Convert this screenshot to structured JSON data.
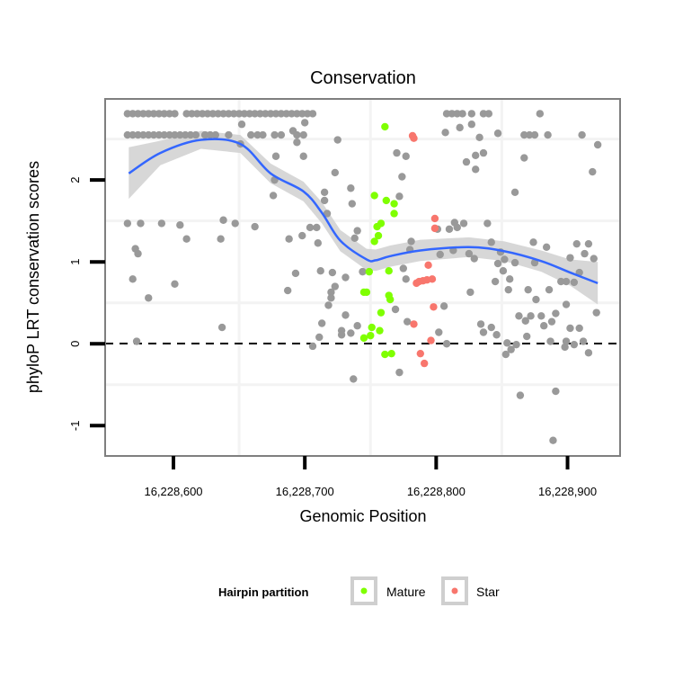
{
  "chart_data": {
    "type": "scatter",
    "title": "Conservation",
    "xlabel": "Genomic Position",
    "ylabel": "phyloP LRT conservation scores",
    "xlim": [
      16228548,
      16228940
    ],
    "ylim": [
      -1.37,
      2.99
    ],
    "x_ticks": [
      16228600,
      16228700,
      16228800,
      16228900
    ],
    "x_tick_labels": [
      "16,228,600",
      "16,228,700",
      "16,228,800",
      "16,228,900"
    ],
    "y_ticks": [
      2,
      1,
      0,
      -1
    ],
    "y_tick_labels": [
      "2",
      "1",
      "0",
      "-1"
    ],
    "grid": true,
    "reference_line": {
      "y": 0,
      "style": "dashed"
    },
    "legend": {
      "title": "Hairpin partition",
      "placement": "bottom",
      "entries": [
        {
          "label": "Mature",
          "color": "#7FFF00"
        },
        {
          "label": "Star",
          "color": "#F8766D"
        }
      ]
    },
    "colors": {
      "other": "#999999",
      "smooth": "#3366FF",
      "band": "#D3D3D3"
    },
    "series": [
      {
        "name": "Other",
        "color": "#999999",
        "points": [
          [
            16228565,
            2.81
          ],
          [
            16228569,
            2.81
          ],
          [
            16228573,
            2.81
          ],
          [
            16228577,
            2.81
          ],
          [
            16228581,
            2.81
          ],
          [
            16228585,
            2.81
          ],
          [
            16228589,
            2.81
          ],
          [
            16228593,
            2.81
          ],
          [
            16228597,
            2.81
          ],
          [
            16228601,
            2.81
          ],
          [
            16228610,
            2.81
          ],
          [
            16228614,
            2.81
          ],
          [
            16228618,
            2.81
          ],
          [
            16228622,
            2.81
          ],
          [
            16228626,
            2.81
          ],
          [
            16228630,
            2.81
          ],
          [
            16228634,
            2.81
          ],
          [
            16228638,
            2.81
          ],
          [
            16228642,
            2.81
          ],
          [
            16228646,
            2.81
          ],
          [
            16228650,
            2.81
          ],
          [
            16228654,
            2.81
          ],
          [
            16228658,
            2.81
          ],
          [
            16228662,
            2.81
          ],
          [
            16228666,
            2.81
          ],
          [
            16228670,
            2.81
          ],
          [
            16228674,
            2.81
          ],
          [
            16228678,
            2.81
          ],
          [
            16228682,
            2.81
          ],
          [
            16228686,
            2.81
          ],
          [
            16228690,
            2.81
          ],
          [
            16228694,
            2.81
          ],
          [
            16228698,
            2.81
          ],
          [
            16228702,
            2.81
          ],
          [
            16228706,
            2.81
          ],
          [
            16228565,
            2.55
          ],
          [
            16228569,
            2.55
          ],
          [
            16228573,
            2.55
          ],
          [
            16228577,
            2.55
          ],
          [
            16228581,
            2.55
          ],
          [
            16228585,
            2.55
          ],
          [
            16228589,
            2.55
          ],
          [
            16228593,
            2.55
          ],
          [
            16228597,
            2.55
          ],
          [
            16228601,
            2.55
          ],
          [
            16228605,
            2.55
          ],
          [
            16228609,
            2.55
          ],
          [
            16228613,
            2.55
          ],
          [
            16228617,
            2.55
          ],
          [
            16228624,
            2.55
          ],
          [
            16228628,
            2.55
          ],
          [
            16228632,
            2.55
          ],
          [
            16228642,
            2.55
          ],
          [
            16228659,
            2.55
          ],
          [
            16228664,
            2.55
          ],
          [
            16228668,
            2.55
          ],
          [
            16228677,
            2.55
          ],
          [
            16228682,
            2.55
          ],
          [
            16228694,
            2.55
          ],
          [
            16228699,
            2.55
          ],
          [
            16228652,
            2.68
          ],
          [
            16228700,
            2.7
          ],
          [
            16228691,
            2.6
          ],
          [
            16228694,
            2.46
          ],
          [
            16228651,
            2.44
          ],
          [
            16228725,
            2.49
          ],
          [
            16228678,
            2.29
          ],
          [
            16228699,
            2.29
          ],
          [
            16228723,
            2.09
          ],
          [
            16228677,
            2.0
          ],
          [
            16228676,
            1.81
          ],
          [
            16228715,
            1.85
          ],
          [
            16228735,
            1.9
          ],
          [
            16228715,
            1.75
          ],
          [
            16228736,
            1.71
          ],
          [
            16228717,
            1.59
          ],
          [
            16228565,
            1.47
          ],
          [
            16228575,
            1.47
          ],
          [
            16228591,
            1.47
          ],
          [
            16228605,
            1.45
          ],
          [
            16228638,
            1.51
          ],
          [
            16228647,
            1.47
          ],
          [
            16228662,
            1.43
          ],
          [
            16228610,
            1.28
          ],
          [
            16228636,
            1.28
          ],
          [
            16228688,
            1.28
          ],
          [
            16228698,
            1.32
          ],
          [
            16228704,
            1.42
          ],
          [
            16228709,
            1.42
          ],
          [
            16228710,
            1.23
          ],
          [
            16228740,
            1.38
          ],
          [
            16228738,
            1.29
          ],
          [
            16228571,
            1.16
          ],
          [
            16228573,
            1.1
          ],
          [
            16228569,
            0.79
          ],
          [
            16228601,
            0.73
          ],
          [
            16228581,
            0.56
          ],
          [
            16228693,
            0.86
          ],
          [
            16228687,
            0.65
          ],
          [
            16228712,
            0.89
          ],
          [
            16228721,
            0.87
          ],
          [
            16228731,
            0.81
          ],
          [
            16228723,
            0.7
          ],
          [
            16228720,
            0.63
          ],
          [
            16228720,
            0.56
          ],
          [
            16228718,
            0.47
          ],
          [
            16228731,
            0.35
          ],
          [
            16228713,
            0.25
          ],
          [
            16228637,
            0.2
          ],
          [
            16228728,
            0.16
          ],
          [
            16228728,
            0.11
          ],
          [
            16228735,
            0.13
          ],
          [
            16228740,
            0.22
          ],
          [
            16228711,
            0.08
          ],
          [
            16228572,
            0.03
          ],
          [
            16228706,
            -0.03
          ],
          [
            16228737,
            -0.43
          ],
          [
            16228744,
            0.88
          ],
          [
            16228808,
            2.81
          ],
          [
            16228812,
            2.81
          ],
          [
            16228816,
            2.81
          ],
          [
            16228820,
            2.81
          ],
          [
            16228827,
            2.81
          ],
          [
            16228836,
            2.81
          ],
          [
            16228840,
            2.81
          ],
          [
            16228879,
            2.81
          ],
          [
            16228807,
            2.58
          ],
          [
            16228818,
            2.64
          ],
          [
            16228827,
            2.68
          ],
          [
            16228847,
            2.57
          ],
          [
            16228833,
            2.52
          ],
          [
            16228867,
            2.55
          ],
          [
            16228871,
            2.55
          ],
          [
            16228875,
            2.55
          ],
          [
            16228885,
            2.55
          ],
          [
            16228911,
            2.55
          ],
          [
            16228923,
            2.43
          ],
          [
            16228770,
            2.33
          ],
          [
            16228777,
            2.29
          ],
          [
            16228823,
            2.22
          ],
          [
            16228830,
            2.3
          ],
          [
            16228836,
            2.33
          ],
          [
            16228830,
            2.13
          ],
          [
            16228867,
            2.27
          ],
          [
            16228919,
            2.1
          ],
          [
            16228774,
            2.04
          ],
          [
            16228860,
            1.85
          ],
          [
            16228772,
            1.8
          ],
          [
            16228814,
            1.48
          ],
          [
            16228821,
            1.47
          ],
          [
            16228810,
            1.4
          ],
          [
            16228801,
            1.4
          ],
          [
            16228816,
            1.42
          ],
          [
            16228839,
            1.47
          ],
          [
            16228781,
            1.25
          ],
          [
            16228842,
            1.24
          ],
          [
            16228874,
            1.24
          ],
          [
            16228884,
            1.18
          ],
          [
            16228907,
            1.22
          ],
          [
            16228916,
            1.22
          ],
          [
            16228780,
            1.15
          ],
          [
            16228813,
            1.14
          ],
          [
            16228803,
            1.09
          ],
          [
            16228825,
            1.1
          ],
          [
            16228829,
            1.04
          ],
          [
            16228849,
            1.12
          ],
          [
            16228852,
            1.03
          ],
          [
            16228860,
            0.99
          ],
          [
            16228875,
            0.99
          ],
          [
            16228902,
            1.05
          ],
          [
            16228913,
            1.1
          ],
          [
            16228920,
            1.04
          ],
          [
            16228847,
            0.98
          ],
          [
            16228851,
            0.89
          ],
          [
            16228856,
            0.79
          ],
          [
            16228845,
            0.76
          ],
          [
            16228775,
            0.92
          ],
          [
            16228777,
            0.79
          ],
          [
            16228909,
            0.87
          ],
          [
            16228895,
            0.76
          ],
          [
            16228899,
            0.76
          ],
          [
            16228905,
            0.75
          ],
          [
            16228855,
            0.66
          ],
          [
            16228870,
            0.66
          ],
          [
            16228886,
            0.66
          ],
          [
            16228826,
            0.63
          ],
          [
            16228876,
            0.54
          ],
          [
            16228899,
            0.48
          ],
          [
            16228806,
            0.46
          ],
          [
            16228769,
            0.42
          ],
          [
            16228922,
            0.38
          ],
          [
            16228863,
            0.34
          ],
          [
            16228872,
            0.34
          ],
          [
            16228880,
            0.34
          ],
          [
            16228891,
            0.37
          ],
          [
            16228868,
            0.28
          ],
          [
            16228888,
            0.27
          ],
          [
            16228882,
            0.22
          ],
          [
            16228778,
            0.27
          ],
          [
            16228834,
            0.24
          ],
          [
            16228842,
            0.2
          ],
          [
            16228836,
            0.14
          ],
          [
            16228846,
            0.11
          ],
          [
            16228902,
            0.19
          ],
          [
            16228909,
            0.19
          ],
          [
            16228802,
            0.14
          ],
          [
            16228869,
            0.09
          ],
          [
            16228808,
            0.0
          ],
          [
            16228854,
            0.01
          ],
          [
            16228861,
            -0.01
          ],
          [
            16228887,
            0.03
          ],
          [
            16228899,
            0.03
          ],
          [
            16228912,
            0.03
          ],
          [
            16228857,
            -0.07
          ],
          [
            16228905,
            -0.01
          ],
          [
            16228898,
            -0.04
          ],
          [
            16228853,
            -0.13
          ],
          [
            16228916,
            -0.11
          ],
          [
            16228772,
            -0.35
          ],
          [
            16228864,
            -0.63
          ],
          [
            16228891,
            -0.58
          ],
          [
            16228889,
            -1.18
          ]
        ]
      },
      {
        "name": "Mature",
        "color": "#7FFF00",
        "points": [
          [
            16228761,
            2.65
          ],
          [
            16228753,
            1.81
          ],
          [
            16228762,
            1.75
          ],
          [
            16228768,
            1.71
          ],
          [
            16228768,
            1.59
          ],
          [
            16228758,
            1.47
          ],
          [
            16228755,
            1.43
          ],
          [
            16228756,
            1.32
          ],
          [
            16228753,
            1.25
          ],
          [
            16228749,
            0.88
          ],
          [
            16228764,
            0.89
          ],
          [
            16228747,
            0.63
          ],
          [
            16228745,
            0.63
          ],
          [
            16228764,
            0.59
          ],
          [
            16228765,
            0.54
          ],
          [
            16228758,
            0.38
          ],
          [
            16228751,
            0.2
          ],
          [
            16228757,
            0.16
          ],
          [
            16228750,
            0.1
          ],
          [
            16228745,
            0.07
          ],
          [
            16228761,
            -0.13
          ],
          [
            16228766,
            -0.12
          ]
        ]
      },
      {
        "name": "Star",
        "color": "#F8766D",
        "points": [
          [
            16228782,
            2.54
          ],
          [
            16228783,
            2.51
          ],
          [
            16228799,
            1.53
          ],
          [
            16228799,
            1.41
          ],
          [
            16228794,
            0.96
          ],
          [
            16228785,
            0.74
          ],
          [
            16228787,
            0.76
          ],
          [
            16228790,
            0.77
          ],
          [
            16228793,
            0.78
          ],
          [
            16228797,
            0.79
          ],
          [
            16228798,
            0.45
          ],
          [
            16228783,
            0.24
          ],
          [
            16228796,
            0.04
          ],
          [
            16228788,
            -0.12
          ],
          [
            16228791,
            -0.24
          ]
        ]
      }
    ],
    "smooth": {
      "x": [
        16228566,
        16228590,
        16228621,
        16228651,
        16228674,
        16228699,
        16228713,
        16228727,
        16228747,
        16228754,
        16228765,
        16228788,
        16228825,
        16228852,
        16228880,
        16228902,
        16228923
      ],
      "y": [
        2.08,
        2.33,
        2.49,
        2.44,
        2.08,
        1.86,
        1.6,
        1.26,
        1.03,
        1.02,
        1.07,
        1.14,
        1.18,
        1.13,
        1.01,
        0.87,
        0.74
      ],
      "lower": [
        1.77,
        2.18,
        2.38,
        2.33,
        1.96,
        1.74,
        1.47,
        1.13,
        0.9,
        0.89,
        0.94,
        1.01,
        1.06,
        1.01,
        0.88,
        0.71,
        0.48
      ],
      "upper": [
        2.4,
        2.48,
        2.6,
        2.55,
        2.2,
        1.98,
        1.73,
        1.39,
        1.16,
        1.15,
        1.2,
        1.27,
        1.3,
        1.25,
        1.14,
        1.03,
        1.0
      ]
    }
  }
}
